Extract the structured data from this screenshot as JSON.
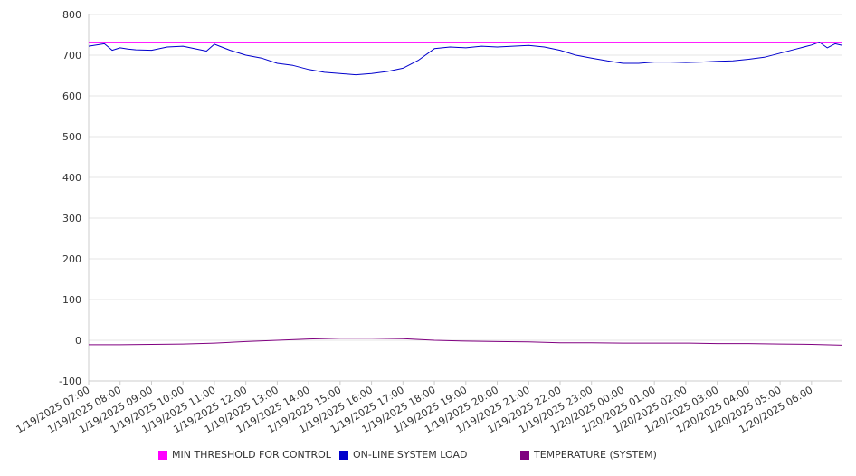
{
  "chart_data": {
    "type": "line",
    "title": "",
    "xlabel": "",
    "ylabel": "",
    "ylim": [
      -100,
      800
    ],
    "yticks": [
      -100,
      0,
      100,
      200,
      300,
      400,
      500,
      600,
      700,
      800
    ],
    "x_ticks": [
      "1/19/2025 07:00",
      "1/19/2025 08:00",
      "1/19/2025 09:00",
      "1/19/2025 10:00",
      "1/19/2025 11:00",
      "1/19/2025 12:00",
      "1/19/2025 13:00",
      "1/19/2025 14:00",
      "1/19/2025 15:00",
      "1/19/2025 16:00",
      "1/19/2025 17:00",
      "1/19/2025 18:00",
      "1/19/2025 19:00",
      "1/19/2025 20:00",
      "1/19/2025 21:00",
      "1/19/2025 22:00",
      "1/19/2025 23:00",
      "1/20/2025 00:00",
      "1/20/2025 01:00",
      "1/20/2025 02:00",
      "1/20/2025 03:00",
      "1/20/2025 04:00",
      "1/20/2025 05:00",
      "1/20/2025 06:00"
    ],
    "x_end": "1/20/2025 06:59",
    "grid": true,
    "legend_position": "bottom",
    "series": [
      {
        "name": "MIN THRESHOLD FOR CONTROL",
        "color": "#ff00ff",
        "x": [
          "1/19/2025 07:00",
          "1/20/2025 06:59"
        ],
        "values": [
          732,
          732
        ]
      },
      {
        "name": "ON-LINE SYSTEM LOAD",
        "color": "#0000cc",
        "x": [
          "1/19/2025 07:00",
          "1/19/2025 07:30",
          "1/19/2025 07:45",
          "1/19/2025 08:00",
          "1/19/2025 08:15",
          "1/19/2025 08:30",
          "1/19/2025 09:00",
          "1/19/2025 09:30",
          "1/19/2025 10:00",
          "1/19/2025 10:30",
          "1/19/2025 10:45",
          "1/19/2025 11:00",
          "1/19/2025 11:30",
          "1/19/2025 12:00",
          "1/19/2025 12:30",
          "1/19/2025 13:00",
          "1/19/2025 13:30",
          "1/19/2025 14:00",
          "1/19/2025 14:30",
          "1/19/2025 15:00",
          "1/19/2025 15:30",
          "1/19/2025 16:00",
          "1/19/2025 16:30",
          "1/19/2025 17:00",
          "1/19/2025 17:30",
          "1/19/2025 18:00",
          "1/19/2025 18:30",
          "1/19/2025 19:00",
          "1/19/2025 19:30",
          "1/19/2025 20:00",
          "1/19/2025 20:30",
          "1/19/2025 21:00",
          "1/19/2025 21:30",
          "1/19/2025 22:00",
          "1/19/2025 22:30",
          "1/19/2025 23:00",
          "1/19/2025 23:30",
          "1/20/2025 00:00",
          "1/20/2025 00:30",
          "1/20/2025 01:00",
          "1/20/2025 01:30",
          "1/20/2025 02:00",
          "1/20/2025 02:30",
          "1/20/2025 03:00",
          "1/20/2025 03:30",
          "1/20/2025 04:00",
          "1/20/2025 04:30",
          "1/20/2025 05:00",
          "1/20/2025 05:30",
          "1/20/2025 06:00",
          "1/20/2025 06:15",
          "1/20/2025 06:30",
          "1/20/2025 06:45",
          "1/20/2025 06:59"
        ],
        "values": [
          722,
          728,
          712,
          718,
          715,
          713,
          712,
          720,
          722,
          714,
          710,
          727,
          712,
          700,
          693,
          680,
          675,
          665,
          658,
          655,
          652,
          655,
          660,
          668,
          688,
          716,
          720,
          718,
          722,
          720,
          722,
          724,
          720,
          712,
          700,
          693,
          686,
          680,
          680,
          683,
          683,
          682,
          683,
          685,
          686,
          690,
          695,
          705,
          715,
          725,
          732,
          718,
          728,
          724
        ]
      },
      {
        "name": "TEMPERATURE (SYSTEM)",
        "color": "#800080",
        "x": [
          "1/19/2025 07:00",
          "1/19/2025 08:00",
          "1/19/2025 09:00",
          "1/19/2025 10:00",
          "1/19/2025 11:00",
          "1/19/2025 12:00",
          "1/19/2025 13:00",
          "1/19/2025 14:00",
          "1/19/2025 15:00",
          "1/19/2025 16:00",
          "1/19/2025 17:00",
          "1/19/2025 18:00",
          "1/19/2025 19:00",
          "1/19/2025 20:00",
          "1/19/2025 21:00",
          "1/19/2025 22:00",
          "1/19/2025 23:00",
          "1/20/2025 00:00",
          "1/20/2025 01:00",
          "1/20/2025 02:00",
          "1/20/2025 03:00",
          "1/20/2025 04:00",
          "1/20/2025 05:00",
          "1/20/2025 06:00",
          "1/20/2025 06:59"
        ],
        "values": [
          -11,
          -11,
          -10,
          -9,
          -7,
          -3,
          0,
          3,
          5,
          5,
          4,
          0,
          -2,
          -3,
          -4,
          -6,
          -6,
          -7,
          -7,
          -7,
          -8,
          -8,
          -9,
          -10,
          -12
        ]
      }
    ]
  }
}
